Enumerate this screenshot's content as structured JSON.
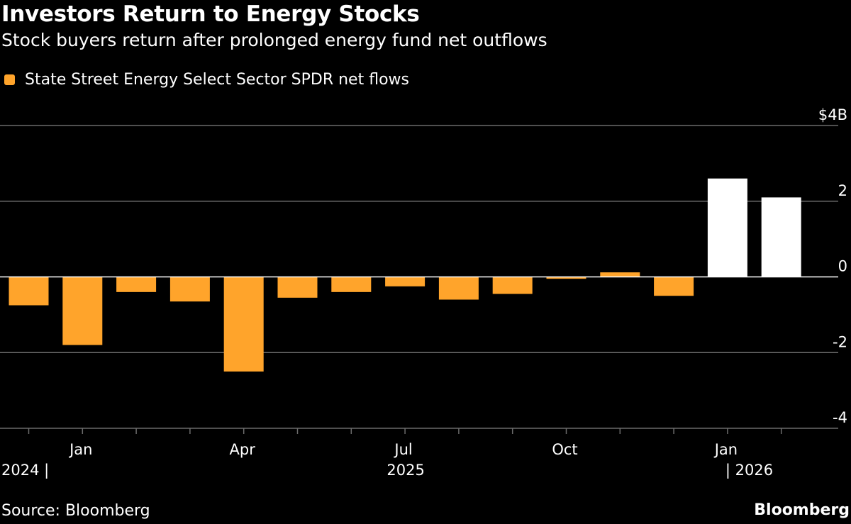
{
  "header": {
    "title": "Investors Return to Energy Stocks",
    "subtitle": "Stock buyers return after prolonged energy fund net outflows"
  },
  "footer": {
    "source": "Source: Bloomberg",
    "brand": "Bloomberg"
  },
  "colors": {
    "background": "#000000",
    "outflow_bar": "#FFA42B",
    "highlight_bar": "#FFFFFF",
    "gridline": "#6b6b6b"
  },
  "chart_data": {
    "type": "bar",
    "title": "Investors Return to Energy Stocks",
    "subtitle": "Stock buyers return after prolonged energy fund net outflows",
    "legend": [
      {
        "label": "State Street Energy Select Sector SPDR net flows",
        "color": "#FFA42B"
      }
    ],
    "unit": "$B",
    "categories": [
      "Dec 2024",
      "Jan 2025",
      "Feb 2025",
      "Mar 2025",
      "Apr 2025",
      "May 2025",
      "Jun 2025",
      "Jul 2025",
      "Aug 2025",
      "Sep 2025",
      "Oct 2025",
      "Nov 2025",
      "Dec 2025",
      "Jan 2026",
      "Feb 2026"
    ],
    "values": [
      -0.75,
      -1.8,
      -0.4,
      -0.65,
      -2.5,
      -0.55,
      -0.4,
      -0.25,
      -0.6,
      -0.45,
      -0.05,
      0.12,
      -0.5,
      2.6,
      2.1
    ],
    "highlight": [
      false,
      false,
      false,
      false,
      false,
      false,
      false,
      false,
      false,
      false,
      false,
      false,
      false,
      true,
      true
    ],
    "ylim": [
      -4,
      4
    ],
    "yticks": [
      4,
      2,
      0,
      -2,
      -4
    ],
    "ytick_labels": [
      "$4B",
      "2",
      "0",
      "-2",
      "-4"
    ],
    "x_tick_labels": [
      {
        "label": "Jan",
        "index": 1
      },
      {
        "label": "Apr",
        "index": 4
      },
      {
        "label": "Jul",
        "index": 7
      },
      {
        "label": "Oct",
        "index": 10
      },
      {
        "label": "Jan",
        "index": 13
      }
    ],
    "year_labels": [
      {
        "label": "2024 |",
        "index": 0
      },
      {
        "label": "2025",
        "index": 7
      },
      {
        "label": "| 2026",
        "index": 13.5
      }
    ],
    "xlabel": "",
    "ylabel": "",
    "grid": true,
    "legend_position": "top-left"
  }
}
